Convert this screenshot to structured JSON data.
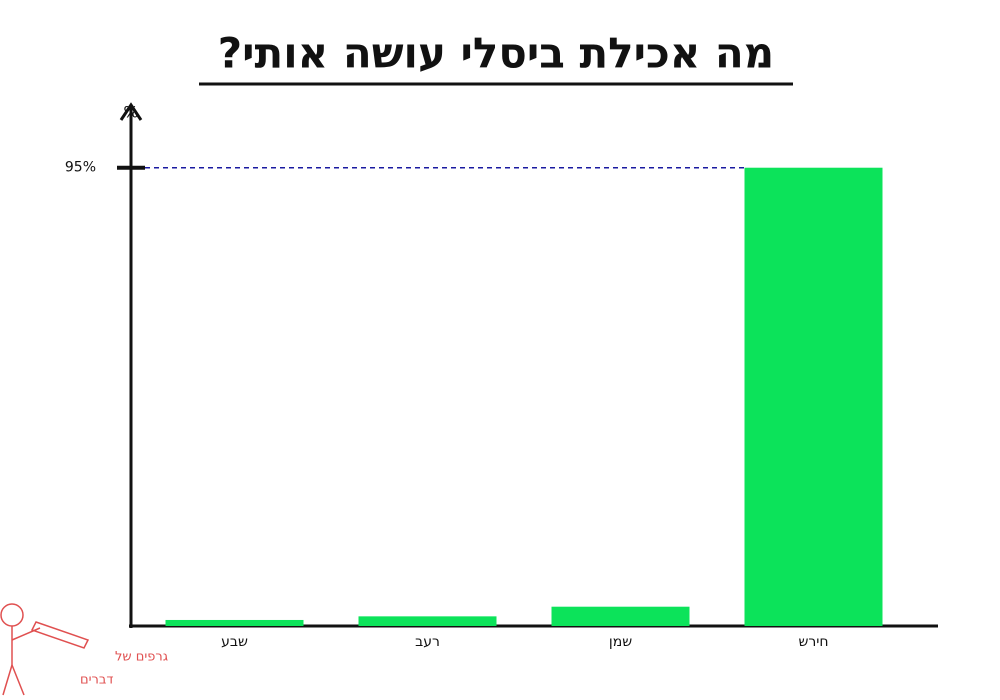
{
  "chart_data": {
    "type": "bar",
    "title": "מה אכילת ביסלי עושה אותי?",
    "y_label": "%",
    "categories": [
      "שבע",
      "רעב",
      "שמן",
      "חירש"
    ],
    "values": [
      1.25,
      2,
      4,
      95
    ],
    "color": "#0ce35a",
    "ylim": [
      0,
      108
    ],
    "yticks": [
      {
        "value": 95,
        "label": "95%"
      }
    ],
    "grid": false,
    "tick_guides": true,
    "watermark": [
      "גרפים של",
      "דברים"
    ]
  }
}
